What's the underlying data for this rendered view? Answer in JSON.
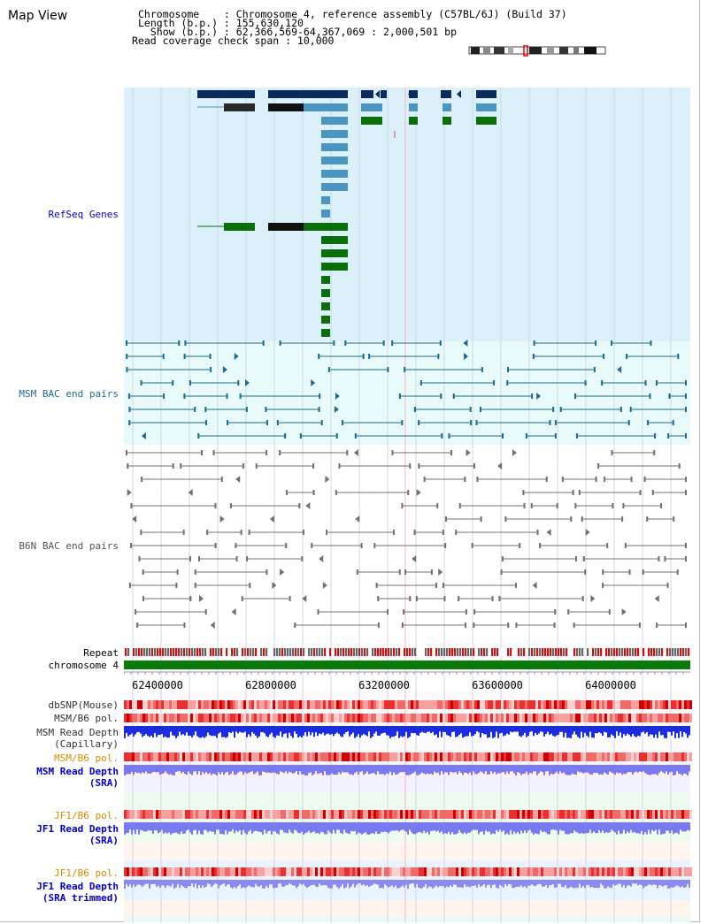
{
  "title": "Map View",
  "header": {
    "chromosome_line": "Chromosome    : Chromosome 4, reference assembly (C57BL/6J) (Build 37)",
    "length_line": "Length (b.p.) : 155,630,120",
    "show_line": "  Show (b.p.) : 62,366,569-64,367,069 : 2,000,501 bp",
    "coverage_line": "Read coverage check span : 10,000"
  },
  "tracks": {
    "refseq": "RefSeq Genes",
    "msm_bac": "MSM BAC end pairs",
    "b6n_bac": "B6N BAC end pairs",
    "repeat": "Repeat",
    "chromosome": "chromosome 4",
    "dbsnp": "dbSNP(Mouse)",
    "msm_b6_pol_1": "MSM/B6 pol.",
    "msm_read_depth_cap": "MSM Read Depth",
    "capillary": "(Capillary)",
    "msm_b6_pol_2": "MSM/B6 pol.",
    "msm_read_depth_sra": "MSM Read Depth",
    "sra_1": "(SRA)",
    "jf1_b6_pol_1": "JF1/B6 pol.",
    "jf1_read_depth": "JF1 Read Depth",
    "sra_2": "(SRA)",
    "jf1_b6_pol_2": "JF1/B6 pol.",
    "jf1_read_depth_trim": "JF1 Read Depth",
    "sra_trimmed": "(SRA trimmed)"
  },
  "axis": {
    "ticks": [
      "62400000",
      "62800000",
      "63200000",
      "63600000",
      "64000000"
    ]
  },
  "colors": {
    "refseq_bg": "#dcf0fa",
    "bac_bg": "#e8fafa",
    "gene_dark": "#0b2a5e",
    "gene_mid": "#4a96c0",
    "gene_green": "#0a6e0a",
    "msm_pair": "#1e6b8c",
    "b6n_pair": "#707070",
    "chrom_bar": "#0a7a0a",
    "label_blue": "#0000cc",
    "label_teal": "#1e6b8c",
    "label_orange": "#d88a00",
    "depth_dark": "#1a2ee0",
    "depth_light": "#7a7af0"
  }
}
